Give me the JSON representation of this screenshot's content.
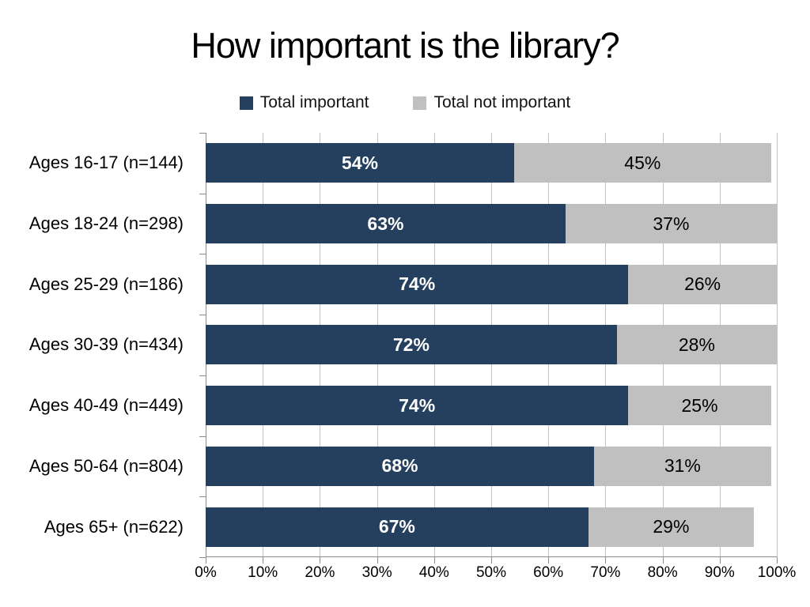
{
  "title": "How important is the library?",
  "colors": {
    "bar_important": "#25405E",
    "bar_not_important": "#C0C0C0",
    "gridline": "#C2C2C2",
    "axis": "#8C8C8C",
    "text": "#000000"
  },
  "chart_data": {
    "type": "bar",
    "orientation": "horizontal",
    "stacked": true,
    "title": "How important is the library?",
    "categories": [
      "Ages 16-17 (n=144)",
      "Ages 18-24 (n=298)",
      "Ages 25-29 (n=186)",
      "Ages 30-39 (n=434)",
      "Ages 40-49 (n=449)",
      "Ages 50-64 (n=804)",
      "Ages 65+ (n=622)"
    ],
    "series": [
      {
        "name": "Total important",
        "color": "#25405E",
        "values": [
          54,
          63,
          74,
          72,
          74,
          68,
          67
        ]
      },
      {
        "name": "Total not important",
        "color": "#C0C0C0",
        "values": [
          45,
          37,
          26,
          28,
          25,
          31,
          29
        ]
      }
    ],
    "xlabel": "",
    "ylabel": "",
    "xlim": [
      0,
      100
    ],
    "x_ticks": [
      "0%",
      "10%",
      "20%",
      "30%",
      "40%",
      "50%",
      "60%",
      "70%",
      "80%",
      "90%",
      "100%"
    ],
    "grid": true,
    "legend_position": "top-center",
    "value_label_format": "percent"
  }
}
